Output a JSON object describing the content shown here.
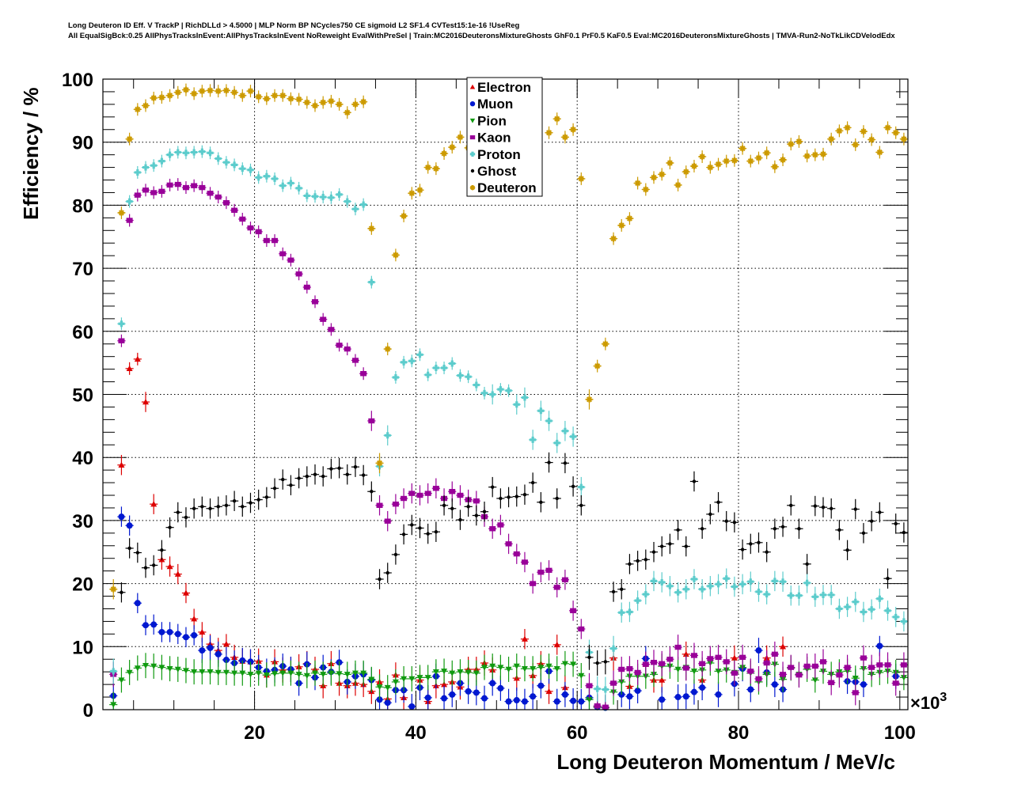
{
  "chart_data": {
    "type": "scatter",
    "title_lines": [
      "Long Deuteron ID Eff. V TrackP | RichDLLd > 4.5000 | MLP Norm BP NCycles750 CE sigmoid L2 SF1.4 CVTest15:1e-16 !UseReg",
      "All EqualSigBck:0.25 AllPhysTracksInEvent:AllPhysTracksInEvent NoReweight EvalWithPreSel | Train:MC2016DeuteronsMixtureGhosts GhF0.1 PrF0.5 KaF0.5 Eval:MC2016DeuteronsMixtureGhosts | TMVA-Run2-NoTkLikCDVelodEdx"
    ],
    "xlabel": "Long Deuteron Momentum / MeV/c",
    "ylabel": "Efficiency / %",
    "x_multiplier": "×10",
    "x_multiplier_exp": "3",
    "xlim": [
      1.2,
      101
    ],
    "ylim": [
      0,
      100
    ],
    "xticks": [
      "20",
      "40",
      "60",
      "80",
      "100"
    ],
    "xtick_values": [
      20,
      40,
      60,
      80,
      100
    ],
    "yticks": [
      "0",
      "10",
      "20",
      "30",
      "40",
      "50",
      "60",
      "70",
      "80",
      "90",
      "100"
    ],
    "ytick_values": [
      0,
      10,
      20,
      30,
      40,
      50,
      60,
      70,
      80,
      90,
      100
    ],
    "grid": true,
    "legend_position": "top-center",
    "x_start": 2.5,
    "x_step": 1,
    "series": [
      {
        "name": "Electron",
        "color": "#dd0000",
        "marker": "triangle-up",
        "values": [
          null,
          38.8,
          54.1,
          55.6,
          48.8,
          32.6,
          23.8,
          22.7,
          21.5,
          18.5,
          14.4,
          12.3,
          10.4,
          9.4,
          10.4,
          8.3,
          7.7,
          7.6,
          7.7,
          5.5,
          7.6,
          6.3,
          6.4,
          6.8,
          7.3,
          6.4,
          3.8,
          7.3,
          4.2,
          3.8,
          4.2,
          4,
          2.9,
          4.4,
          1.7,
          5.5,
          1.9,
          null,
          4.7,
          1.3,
          3.8,
          4,
          4.4,
          3.6,
          6.4,
          6.4,
          7.4,
          6.3,
          null,
          null,
          5,
          11.2,
          5.4,
          7.3,
          2.9,
          10.3,
          3.5,
          null,
          null,
          null,
          null,
          null,
          8.2,
          null,
          3.7,
          null,
          7.2,
          4.7,
          4.7,
          null,
          null,
          8.8,
          null,
          4.7,
          null,
          null,
          null,
          8.2,
          null,
          null,
          null,
          8.2,
          null,
          10,
          null,
          null,
          null,
          null,
          null,
          null,
          null,
          null,
          null,
          null,
          null,
          null,
          null,
          null,
          null
        ]
      },
      {
        "name": "Muon",
        "color": "#0018d0",
        "marker": "circle",
        "values": [
          2.2,
          30.6,
          29.2,
          16.9,
          13.4,
          13.5,
          12.3,
          12.3,
          12,
          11.5,
          11.8,
          9.4,
          9.8,
          8.8,
          7.9,
          7.4,
          7.8,
          7.6,
          6.7,
          6.1,
          6.3,
          6.9,
          6.4,
          4.2,
          7.2,
          5.1,
          6.7,
          6,
          7.5,
          4.4,
          5.3,
          5.6,
          4.7,
          1.6,
          1.1,
          3.1,
          3.1,
          0.5,
          3.5,
          1.9,
          5.3,
          1.8,
          2.4,
          4.2,
          2.9,
          2.7,
          1.8,
          4.2,
          3.4,
          1.3,
          1.5,
          1.3,
          2.1,
          3.8,
          6.1,
          1.3,
          2.4,
          1.4,
          1.3,
          1.9,
          0.4,
          0.3,
          null,
          2.4,
          2.1,
          3,
          8.1,
          null,
          1.6,
          null,
          2,
          2.1,
          2.8,
          3.5,
          null,
          2.4,
          null,
          4.1,
          6.5,
          3.2,
          9.4,
          5.9,
          4,
          3.2,
          null,
          null,
          null,
          null,
          null,
          null,
          null,
          4.5,
          4.4,
          4,
          null,
          10.1,
          null,
          5.3,
          null
        ]
      },
      {
        "name": "Pion",
        "color": "#109a10",
        "marker": "triangle-down",
        "values": [
          0.8,
          4.7,
          5.9,
          6.6,
          7,
          6.9,
          6.7,
          6.5,
          6.4,
          6.2,
          6,
          6,
          6,
          5.9,
          5.9,
          5.8,
          5.8,
          5.6,
          5.8,
          5.5,
          5.7,
          5.8,
          5.8,
          5.6,
          5.4,
          5.8,
          5.6,
          5.8,
          5.7,
          5.6,
          5.8,
          5.8,
          4.8,
          3.6,
          3.5,
          4.4,
          4.9,
          4.9,
          5.1,
          5.1,
          6,
          6.1,
          5.8,
          6,
          5.9,
          5.8,
          6.7,
          6.9,
          6.7,
          6.4,
          6.9,
          6.5,
          6.5,
          6.7,
          6.9,
          6.5,
          7.3,
          7.2,
          5.4,
          1.6,
          0.4,
          0.3,
          2.8,
          4.4,
          5.3,
          5.3,
          5.3,
          5.6,
          6.9,
          6.9,
          6.4,
          6.7,
          6.1,
          6.3,
          7.4,
          6.1,
          6.3,
          5.9,
          6.7,
          5.8,
          4.4,
          5.6,
          7.2,
          4.8,
          6.6,
          5.6,
          6.4,
          4.7,
          6.1,
          5.6,
          6,
          6.1,
          5,
          6.5,
          5.6,
          5.9,
          6.1,
          5.9,
          5.1
        ]
      },
      {
        "name": "Kaon",
        "color": "#990099",
        "marker": "square",
        "values": [
          5.6,
          58.5,
          77.6,
          81.6,
          82.4,
          82,
          82.2,
          83.2,
          83.3,
          82.8,
          83.1,
          82.8,
          81.9,
          81.3,
          80.4,
          79.2,
          77.8,
          76.4,
          75.8,
          74.4,
          74.4,
          72.3,
          71.3,
          69.1,
          67,
          64.7,
          61.9,
          60.3,
          57.8,
          57.2,
          55.4,
          53.3,
          45.8,
          32.4,
          29.9,
          32.6,
          33.5,
          34.3,
          34,
          34.3,
          35.1,
          33.5,
          34.6,
          34,
          33.3,
          33.1,
          30.6,
          28.7,
          29.3,
          26.3,
          24.7,
          23.4,
          20,
          21.8,
          22.1,
          19.4,
          20.6,
          15.7,
          12.8,
          3.8,
          0.6,
          0.4,
          4.2,
          6.4,
          6.5,
          5.9,
          7.2,
          7.5,
          7.3,
          8,
          9.9,
          6.6,
          8.6,
          7.3,
          8.1,
          8.3,
          7.6,
          5.8,
          8.3,
          6.1,
          4.9,
          7.4,
          8.8,
          5.6,
          6.7,
          5.5,
          6.9,
          6.9,
          7.6,
          4.3,
          5.5,
          6.7,
          2.7,
          8.2,
          6.7,
          7.1,
          7.1,
          4.2,
          7.1
        ]
      },
      {
        "name": "Proton",
        "color": "#5ccccc",
        "marker": "cross",
        "values": [
          6.1,
          61.2,
          80.6,
          85.2,
          86,
          86.3,
          87,
          88,
          88.4,
          88.3,
          88.4,
          88.5,
          88.3,
          87.4,
          86.8,
          86.4,
          85.8,
          85.6,
          84.4,
          84.6,
          84.2,
          83.1,
          83.5,
          82.7,
          81.5,
          81.4,
          81.3,
          81.2,
          81.7,
          80.6,
          79.4,
          80.1,
          67.8,
          38.6,
          43.5,
          52.7,
          55.1,
          55.3,
          56.3,
          53.1,
          54.2,
          54.2,
          54.9,
          53,
          52.8,
          51.5,
          50.2,
          50,
          50.8,
          50.6,
          48.4,
          49.5,
          42.8,
          47.4,
          45.8,
          42.3,
          44.2,
          43.3,
          35.3,
          9.1,
          3.3,
          3.2,
          9.7,
          15.4,
          15.5,
          17.3,
          18.3,
          20.4,
          20.2,
          19.6,
          18.6,
          19.1,
          20.7,
          19.1,
          19.6,
          19.9,
          20.8,
          19.5,
          19.9,
          20.3,
          18.7,
          18.3,
          20.4,
          20.3,
          18.1,
          18.1,
          20.1,
          17.9,
          18.2,
          18.2,
          16,
          16.3,
          17.1,
          15.5,
          15.9,
          17.6,
          15.7,
          14.7,
          14
        ]
      },
      {
        "name": "Ghost",
        "color": "#000000",
        "marker": "dot",
        "values": [
          null,
          18.6,
          25.6,
          24.9,
          22.5,
          22.9,
          25.3,
          28.9,
          31.3,
          30.5,
          31.9,
          32.2,
          31.9,
          32.2,
          32.4,
          33.1,
          32.2,
          32.8,
          33.3,
          33.7,
          35.1,
          36.5,
          35.6,
          36.7,
          37,
          37.3,
          37,
          38.2,
          38.3,
          37.3,
          38.5,
          37.2,
          34.6,
          20.7,
          21.7,
          24.6,
          27.8,
          29.3,
          28.8,
          27.9,
          28.2,
          32.4,
          31.9,
          30.1,
          32.2,
          30.8,
          31.4,
          35.3,
          33.5,
          33.7,
          33.8,
          34.1,
          36,
          32.9,
          39.2,
          33.5,
          39.1,
          35.4,
          32.4,
          8.3,
          7.4,
          7.6,
          18.7,
          19.1,
          23.1,
          23.6,
          23.8,
          25,
          25.9,
          26.3,
          28.5,
          25.9,
          36.2,
          28.7,
          31,
          32.9,
          29.9,
          29.7,
          25.4,
          26.3,
          26.5,
          25,
          28.7,
          29,
          32.4,
          28.7,
          23.1,
          32.3,
          32.1,
          31.9,
          28.5,
          25.3,
          31.8,
          28,
          29.9,
          31.3,
          20.8,
          29.5,
          28.1
        ]
      },
      {
        "name": "Deuteron",
        "color": "#cc9a00",
        "marker": "star",
        "values": [
          19.1,
          78.8,
          90.5,
          95.2,
          95.8,
          97,
          97.1,
          97.4,
          97.9,
          98.3,
          97.7,
          98.1,
          98.2,
          98.1,
          98.2,
          97.9,
          97.4,
          98.1,
          97.2,
          96.9,
          97.4,
          97.4,
          96.9,
          96.8,
          96.3,
          95.8,
          96.3,
          96.5,
          96,
          94.7,
          96,
          96.4,
          76.3,
          39.1,
          57.2,
          72.1,
          78.3,
          81.9,
          82.4,
          86,
          85.8,
          88.2,
          89.2,
          90.8,
          89.1,
          null,
          null,
          null,
          null,
          null,
          null,
          null,
          null,
          null,
          91.5,
          93.7,
          90.8,
          92,
          84.2,
          49.2,
          54.5,
          58,
          74.7,
          76.8,
          77.9,
          83.5,
          82.5,
          84.4,
          84.9,
          86.7,
          83.2,
          85.3,
          86.2,
          87.7,
          86,
          86.5,
          87,
          87.1,
          89,
          87,
          87.5,
          88.3,
          86.1,
          87.2,
          89.7,
          90.1,
          87.8,
          88,
          88.1,
          90.5,
          91.8,
          92.3,
          89.6,
          91.7,
          90.4,
          88.4,
          92.3,
          91.5,
          90.5
        ]
      }
    ]
  }
}
